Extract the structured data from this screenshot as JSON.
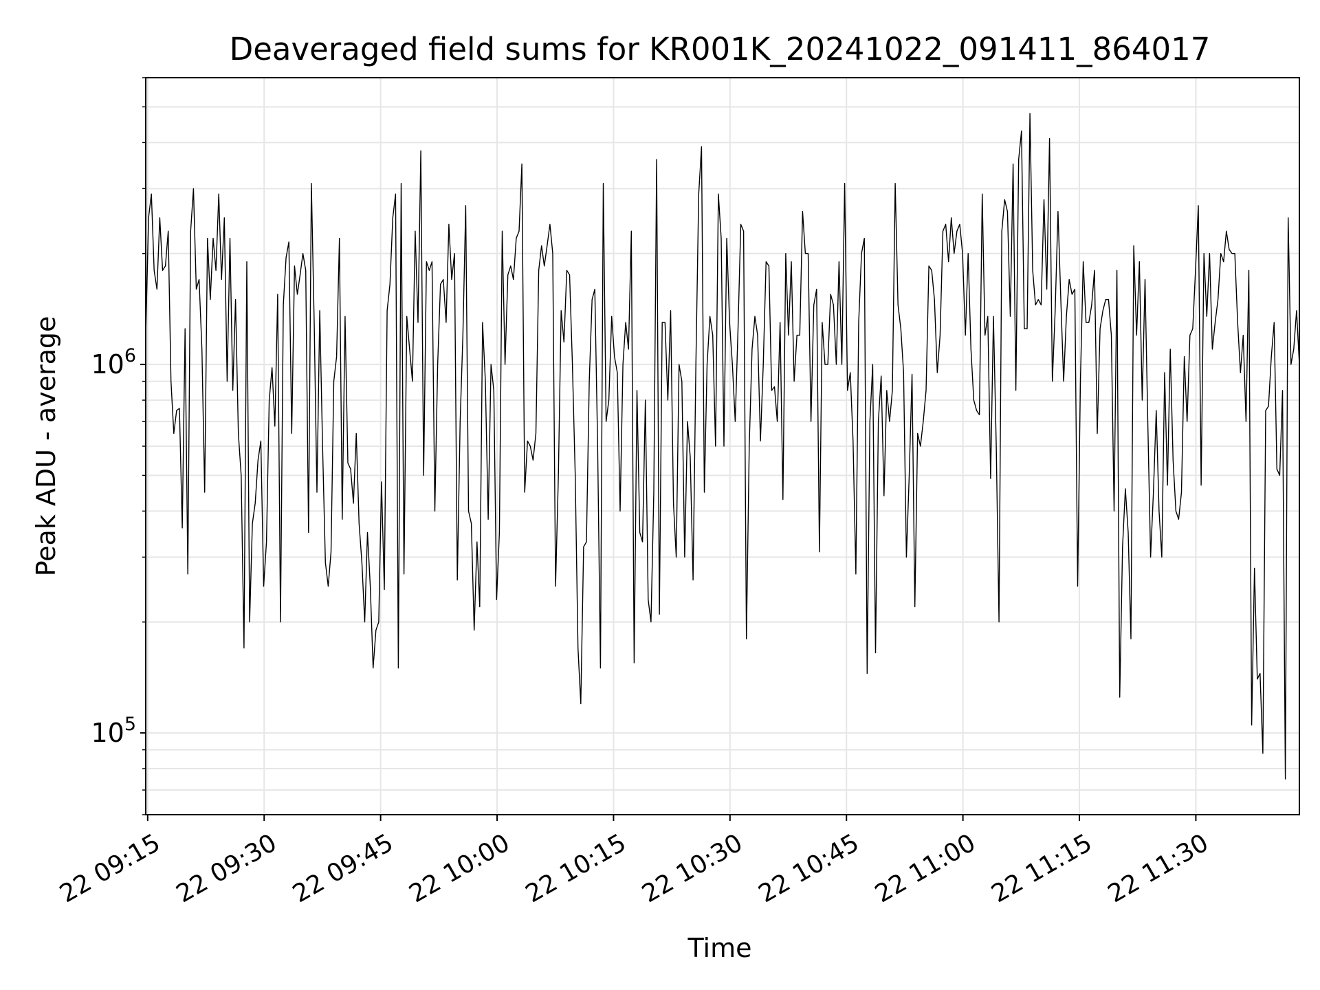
{
  "chart_data": {
    "type": "line",
    "title": "Deaveraged field sums for KR001K_20241022_091411_864017",
    "xlabel": "Time",
    "ylabel": "Peak ADU - average",
    "yscale": "log",
    "ylim": [
      60000,
      6000000
    ],
    "xlim": [
      "2024-10-22 09:14:45",
      "2024-10-22 11:43:20"
    ],
    "grid": true,
    "line_color": "#000000",
    "x_ticks": [
      "22 09:15",
      "22 09:30",
      "22 09:45",
      "22 10:00",
      "22 10:15",
      "22 10:30",
      "22 10:45",
      "22 11:00",
      "22 11:15",
      "22 11:30"
    ],
    "y_ticks": [
      {
        "base": "10",
        "exp": "5",
        "value": 100000
      },
      {
        "base": "10",
        "exp": "6",
        "value": 1000000
      }
    ],
    "series": [
      {
        "x_start": "2024-10-22 09:14:45",
        "x_end": "2024-10-22 11:43:20",
        "values": [
          1200000,
          2500000,
          2900000,
          1800000,
          1600000,
          2500000,
          1800000,
          1850000,
          2300000,
          900000,
          650000,
          750000,
          760000,
          360000,
          1250000,
          270000,
          2300000,
          3000000,
          1600000,
          1700000,
          1100000,
          450000,
          2200000,
          1500000,
          2200000,
          1800000,
          2900000,
          1700000,
          2500000,
          900000,
          2200000,
          850000,
          1500000,
          650000,
          500000,
          170000,
          1900000,
          200000,
          370000,
          420000,
          550000,
          620000,
          250000,
          330000,
          800000,
          980000,
          680000,
          1550000,
          200000,
          1450000,
          1950000,
          2150000,
          650000,
          1850000,
          1550000,
          1750000,
          2000000,
          1800000,
          350000,
          3100000,
          1300000,
          450000,
          1400000,
          600000,
          290000,
          250000,
          310000,
          900000,
          1050000,
          2200000,
          380000,
          1350000,
          540000,
          520000,
          420000,
          650000,
          370000,
          290000,
          200000,
          350000,
          250000,
          150000,
          190000,
          200000,
          480000,
          245000,
          1400000,
          1650000,
          2500000,
          2900000,
          150000,
          3100000,
          270000,
          1350000,
          1100000,
          900000,
          2300000,
          1300000,
          3800000,
          500000,
          1900000,
          1800000,
          1900000,
          400000,
          1000000,
          1650000,
          1700000,
          1300000,
          2400000,
          1700000,
          2000000,
          260000,
          700000,
          1200000,
          2700000,
          400000,
          370000,
          190000,
          330000,
          220000,
          1300000,
          900000,
          380000,
          1000000,
          850000,
          230000,
          350000,
          2300000,
          1000000,
          1750000,
          1850000,
          1700000,
          2200000,
          2300000,
          3500000,
          450000,
          620000,
          600000,
          550000,
          650000,
          1800000,
          2100000,
          1850000,
          2100000,
          2400000,
          2000000,
          250000,
          500000,
          1400000,
          1150000,
          1800000,
          1750000,
          1000000,
          500000,
          170000,
          120000,
          320000,
          330000,
          900000,
          1500000,
          1600000,
          600000,
          150000,
          3100000,
          700000,
          800000,
          1350000,
          1050000,
          950000,
          400000,
          1000000,
          1300000,
          1100000,
          2300000,
          155000,
          850000,
          350000,
          330000,
          800000,
          230000,
          200000,
          450000,
          3600000,
          210000,
          1300000,
          1300000,
          800000,
          1400000,
          420000,
          300000,
          1000000,
          900000,
          300000,
          700000,
          560000,
          260000,
          1000000,
          2900000,
          3900000,
          450000,
          1000000,
          1350000,
          1200000,
          600000,
          2900000,
          2200000,
          600000,
          2200000,
          1300000,
          1000000,
          700000,
          1250000,
          2400000,
          2300000,
          180000,
          600000,
          1100000,
          1350000,
          1200000,
          620000,
          1000000,
          1900000,
          1850000,
          850000,
          870000,
          700000,
          1300000,
          430000,
          2000000,
          1200000,
          1900000,
          900000,
          1200000,
          1200000,
          2600000,
          2000000,
          2000000,
          700000,
          1450000,
          1600000,
          310000,
          1300000,
          1000000,
          1000000,
          1550000,
          1450000,
          1000000,
          1900000,
          1000000,
          3100000,
          850000,
          950000,
          620000,
          270000,
          1300000,
          2000000,
          2200000,
          145000,
          700000,
          1000000,
          165000,
          700000,
          930000,
          440000,
          850000,
          700000,
          850000,
          3100000,
          1450000,
          1250000,
          950000,
          300000,
          500000,
          940000,
          220000,
          650000,
          600000,
          700000,
          850000,
          1850000,
          1800000,
          1500000,
          950000,
          1200000,
          2300000,
          2400000,
          1900000,
          2500000,
          2000000,
          2300000,
          2400000,
          2000000,
          1200000,
          2000000,
          1100000,
          800000,
          750000,
          730000,
          2900000,
          1200000,
          1350000,
          490000,
          1350000,
          600000,
          200000,
          2300000,
          2800000,
          2600000,
          1350000,
          3500000,
          850000,
          3600000,
          4300000,
          1250000,
          1250000,
          4800000,
          1800000,
          1450000,
          1500000,
          1450000,
          2800000,
          1600000,
          4100000,
          900000,
          1400000,
          2600000,
          1500000,
          900000,
          1350000,
          1700000,
          1550000,
          1600000,
          250000,
          900000,
          1900000,
          1300000,
          1300000,
          1450000,
          1800000,
          650000,
          1250000,
          1400000,
          1500000,
          1500000,
          1200000,
          400000,
          1800000,
          125000,
          320000,
          460000,
          350000,
          180000,
          2100000,
          1200000,
          1900000,
          800000,
          1700000,
          700000,
          300000,
          450000,
          750000,
          400000,
          300000,
          950000,
          470000,
          1100000,
          550000,
          400000,
          380000,
          450000,
          1050000,
          700000,
          1200000,
          1250000,
          1800000,
          2700000,
          470000,
          2000000,
          1350000,
          2000000,
          1100000,
          1300000,
          1500000,
          2000000,
          1900000,
          2300000,
          2050000,
          2000000,
          2000000,
          1300000,
          950000,
          1200000,
          700000,
          1800000,
          105000,
          280000,
          140000,
          145000,
          88000,
          750000,
          770000,
          1050000,
          1300000,
          520000,
          500000,
          850000,
          75000,
          2500000,
          1000000,
          1100000,
          1400000,
          1000000
        ]
      }
    ]
  }
}
